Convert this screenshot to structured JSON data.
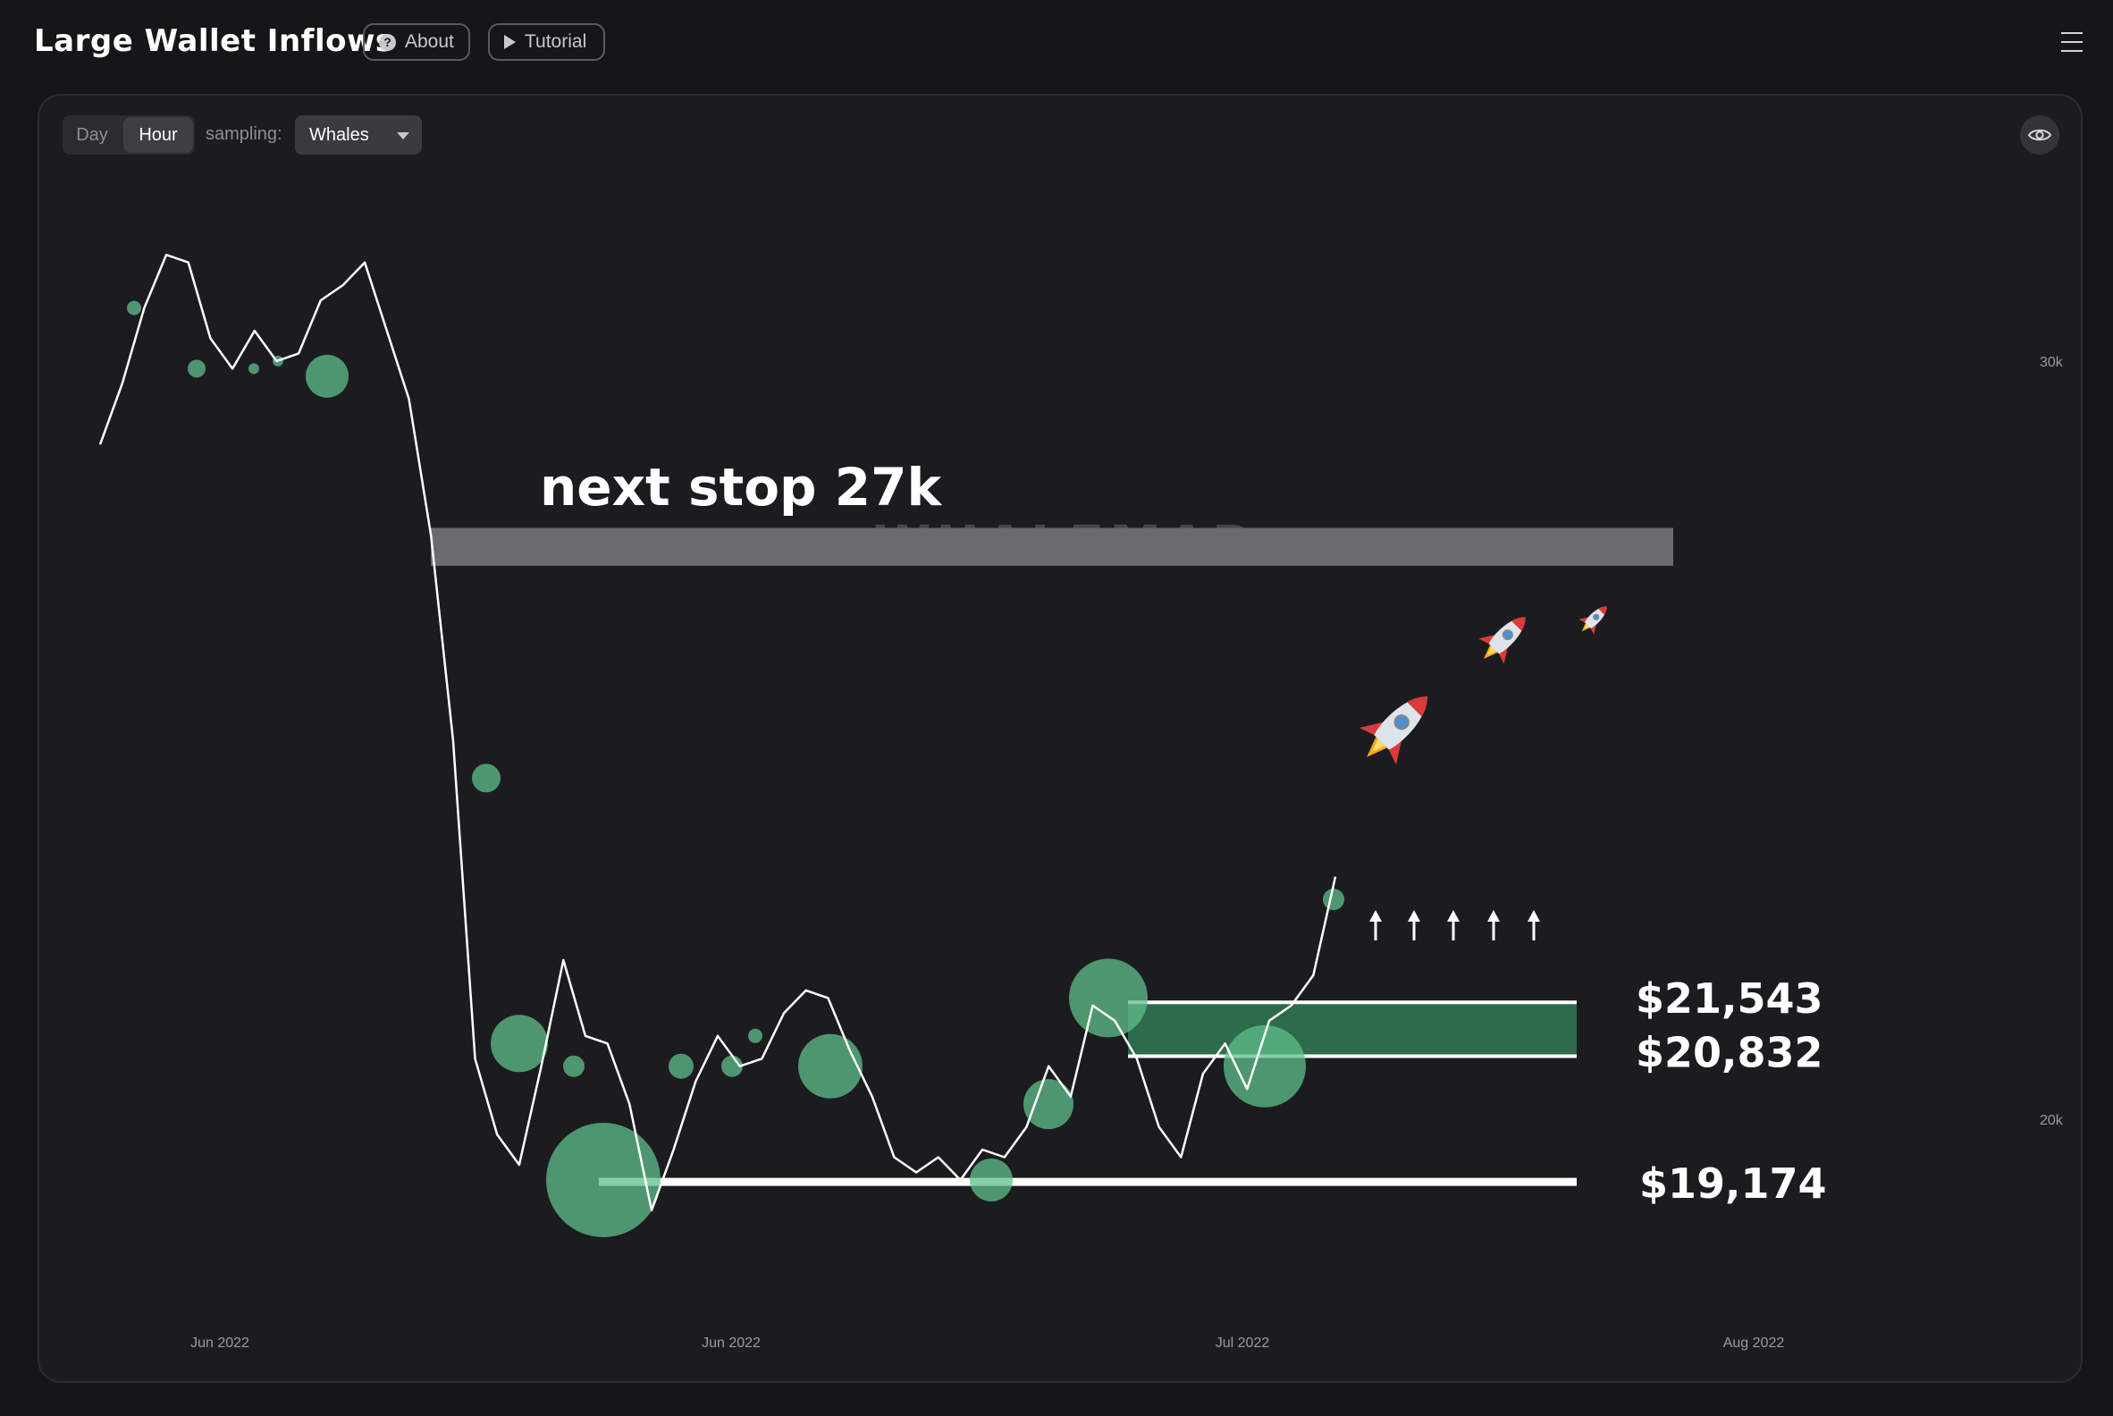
{
  "header": {
    "title": "Large Wallet Inflows",
    "about_label": "About",
    "tutorial_label": "Tutorial"
  },
  "controls": {
    "periods": [
      "Day",
      "Hour"
    ],
    "active_period": "Hour",
    "sampling_label": "sampling:",
    "sampling_value": "Whales"
  },
  "icons": {
    "about": "question-circle-icon",
    "tutorial": "play-icon",
    "menu": "hamburger-menu-icon",
    "visibility": "eye-icon",
    "rocket": "rocket-icon",
    "arrow": "arrow-up-icon"
  },
  "colors": {
    "background": "#161619",
    "panel": "#1c1c20",
    "price_line": "#ffffff",
    "bubble": "#5fbf8a",
    "resistance_band": "#6b6b6e",
    "support_band": "#2e6a4c"
  },
  "watermark": "WHALEMAP",
  "annotations": {
    "next_stop": "next stop 27k",
    "price_levels": [
      "$21,543",
      "$20,832",
      "$19,174"
    ]
  },
  "chart_data": {
    "type": "line",
    "series": [
      {
        "values": [
          28900,
          29700,
          30700,
          31400,
          31300,
          30300,
          29900,
          30400,
          30000,
          30100,
          30800,
          31000,
          31300,
          30400,
          29500,
          27700,
          25000,
          20800,
          19800,
          19400,
          20700,
          22100,
          21100,
          21000,
          20200,
          18800,
          19600,
          20500,
          21100,
          20700,
          20800,
          21400,
          21700,
          21600,
          20900,
          20300,
          19500,
          19300,
          19500,
          19200,
          19600,
          19500,
          19900,
          20700,
          20300,
          21500,
          21300,
          20800,
          19900,
          19500,
          20600,
          21000,
          20400,
          21300,
          21500,
          21900,
          23200
        ]
      }
    ],
    "x_tick_labels": [
      "Jun 2022",
      "Jun 2022",
      "Jul 2022",
      "Aug 2022"
    ],
    "y_tick_labels": [
      "30k",
      "20k"
    ],
    "ylim": [
      16500,
      33500
    ],
    "levels": [
      {
        "label": "$21,543",
        "value": 21543
      },
      {
        "label": "$20,832",
        "value": 20832
      },
      {
        "label": "$19,174",
        "value": 19174
      }
    ],
    "zones": [
      {
        "name": "resistance",
        "from": 27300,
        "to": 27800
      },
      {
        "name": "support",
        "from": 20832,
        "to": 21543
      }
    ],
    "whale_inflows": [
      {
        "price": 30700,
        "size": 4
      },
      {
        "price": 29900,
        "size": 5
      },
      {
        "price": 29900,
        "size": 3
      },
      {
        "price": 30000,
        "size": 3
      },
      {
        "price": 29800,
        "size": 12
      },
      {
        "price": 24500,
        "size": 8
      },
      {
        "price": 21000,
        "size": 16
      },
      {
        "price": 20700,
        "size": 6
      },
      {
        "price": 19200,
        "size": 32
      },
      {
        "price": 20700,
        "size": 7
      },
      {
        "price": 20700,
        "size": 6
      },
      {
        "price": 21100,
        "size": 4
      },
      {
        "price": 20700,
        "size": 18
      },
      {
        "price": 19200,
        "size": 12
      },
      {
        "price": 20200,
        "size": 14
      },
      {
        "price": 21600,
        "size": 22
      },
      {
        "price": 20700,
        "size": 23
      },
      {
        "price": 22900,
        "size": 6
      }
    ],
    "legend": "none",
    "grid": false
  }
}
